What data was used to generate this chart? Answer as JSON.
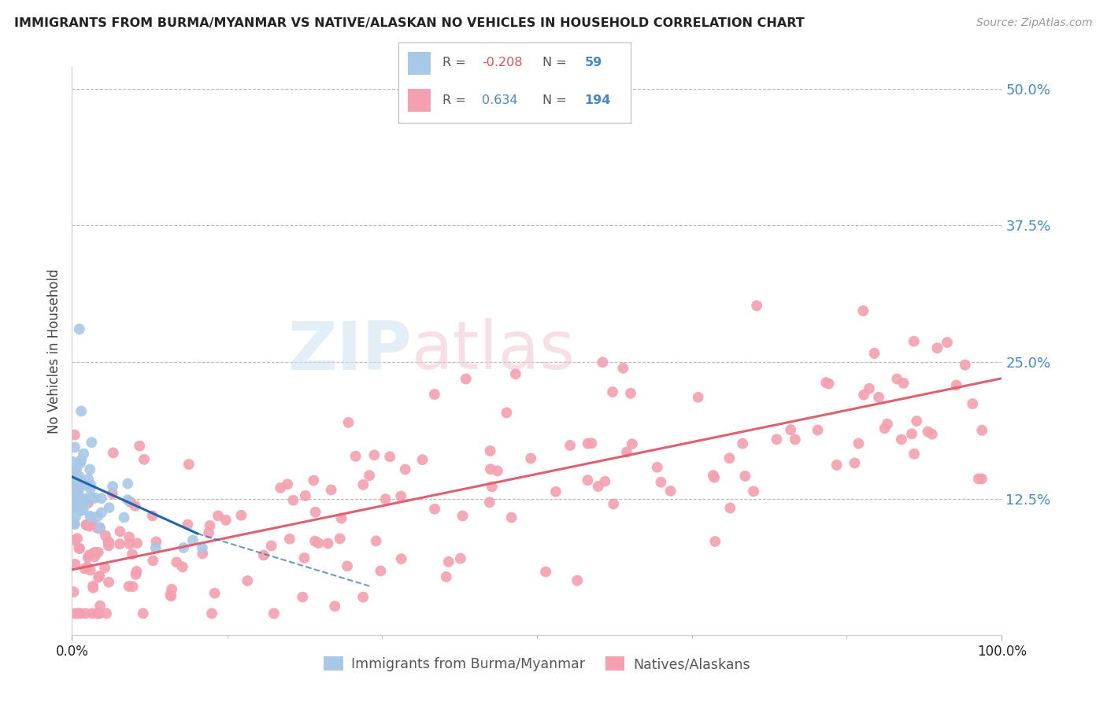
{
  "title": "IMMIGRANTS FROM BURMA/MYANMAR VS NATIVE/ALASKAN NO VEHICLES IN HOUSEHOLD CORRELATION CHART",
  "source": "Source: ZipAtlas.com",
  "ylabel": "No Vehicles in Household",
  "color_blue": "#a8c8e8",
  "color_pink": "#f4a0b0",
  "trendline_blue": "#2166ac",
  "trendline_pink": "#e06070",
  "watermark_zip": "ZIP",
  "watermark_atlas": "atlas",
  "background_color": "#ffffff",
  "grid_color": "#bbbbbb",
  "legend_label1": "Immigrants from Burma/Myanmar",
  "legend_label2": "Natives/Alaskans",
  "R1": "-0.208",
  "N1": "59",
  "R2": "0.634",
  "N2": "194",
  "ytick_positions": [
    0.125,
    0.25,
    0.375,
    0.5
  ],
  "ytick_labels": [
    "12.5%",
    "25.0%",
    "37.5%",
    "50.0%"
  ],
  "title_color": "#222222",
  "source_color": "#999999",
  "ytick_color": "#4488cc",
  "xtick_color": "#222222",
  "R_neg_color": "#e05050",
  "R_pos_color": "#4488cc",
  "N_color": "#4488cc"
}
